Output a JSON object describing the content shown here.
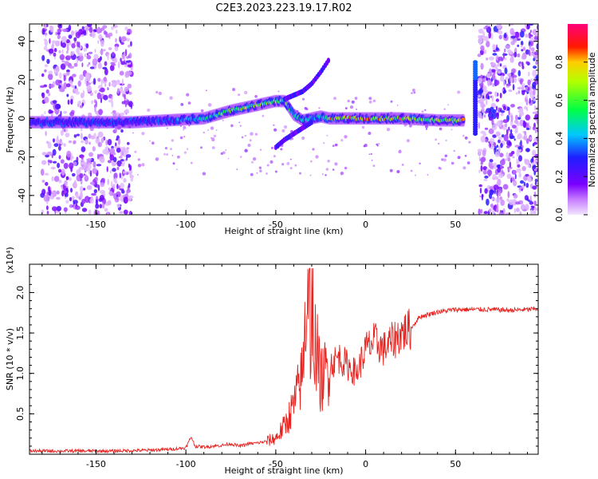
{
  "title": "C2E3.2023.223.19.17.R02",
  "colors": {
    "snr_line": "#e8221e",
    "spectrum_low": "#8a00e0",
    "spectrum_high": "#ff0000"
  },
  "chart_data": [
    {
      "type": "heatmap",
      "xlabel": "Height of straight line (km)",
      "ylabel": "Frequency (Hz)",
      "xlim": [
        -187,
        96
      ],
      "ylim": [
        -50,
        49
      ],
      "xticks": [
        -150,
        -100,
        -50,
        0,
        50
      ],
      "xtick_labels": [
        "-150",
        "-100",
        "-50",
        "0",
        "50"
      ],
      "yticks": [
        -40,
        -20,
        0,
        20,
        40
      ],
      "ytick_labels": [
        "-40",
        "-20",
        "0",
        "20",
        "40"
      ],
      "colorbar": {
        "label": "Normalized spectral amplitude",
        "range": [
          0,
          1
        ],
        "ticks": [
          "0.0",
          "0.2",
          "0.4",
          "0.6",
          "0.8"
        ],
        "colormap": "rainbow (violet → blue → cyan → green → yellow → red → magenta)"
      },
      "ridge": {
        "x": [
          -187,
          -170,
          -150,
          -130,
          -110,
          -90,
          -75,
          -60,
          -50,
          -45,
          -40,
          -35,
          -30,
          -25,
          -20,
          -10,
          0,
          20,
          40,
          55
        ],
        "freq": [
          -2,
          -2,
          -2,
          -2,
          -1,
          0,
          4,
          7,
          9,
          9,
          2,
          -1,
          0,
          1,
          0,
          0,
          0,
          0,
          -1,
          -1
        ],
        "amplitude": [
          0.3,
          0.3,
          0.3,
          0.3,
          0.4,
          0.5,
          0.7,
          0.8,
          0.8,
          0.7,
          0.6,
          0.5,
          0.6,
          0.6,
          0.9,
          0.9,
          0.9,
          0.85,
          0.75,
          0.8
        ]
      },
      "upper_branch": {
        "x": [
          -45,
          -35,
          -30,
          -25,
          -20
        ],
        "freq": [
          10,
          14,
          18,
          24,
          31
        ]
      },
      "lower_branch": {
        "x": [
          -50,
          -45,
          -40,
          -35,
          -30
        ],
        "freq": [
          -15,
          -11,
          -8,
          -5,
          -2
        ]
      },
      "spike": {
        "x": 61,
        "freq_range": [
          -8,
          30
        ]
      },
      "noise_regions": [
        [
          -180,
          -130
        ],
        [
          63,
          96
        ]
      ]
    },
    {
      "type": "line",
      "xlabel": "Height of straight line (km)",
      "ylabel": "SNR (10 * v/v)",
      "scale_note": "(x10⁴)",
      "xlim": [
        -187,
        96
      ],
      "ylim": [
        0,
        2.35
      ],
      "xticks": [
        -150,
        -100,
        -50,
        0,
        50
      ],
      "xtick_labels": [
        "-150",
        "-100",
        "-50",
        "0",
        "50"
      ],
      "yticks": [
        0.5,
        1.0,
        1.5,
        2.0
      ],
      "ytick_labels": [
        "0.5",
        "1.0",
        "1.5",
        "2.0"
      ],
      "series": [
        {
          "x": [
            -187,
            -160,
            -140,
            -120,
            -110,
            -100,
            -97,
            -95,
            -90,
            -80,
            -75,
            -70,
            -65,
            -60,
            -55,
            -50,
            -45,
            -40,
            -35,
            -32,
            -30,
            -28,
            -25,
            -20,
            -15,
            -10,
            -5,
            0,
            5,
            10,
            15,
            20,
            25,
            30,
            40,
            50,
            60,
            70,
            80,
            90,
            96
          ],
          "y": [
            0.04,
            0.04,
            0.04,
            0.05,
            0.06,
            0.08,
            0.22,
            0.1,
            0.09,
            0.11,
            0.13,
            0.1,
            0.13,
            0.14,
            0.16,
            0.2,
            0.35,
            0.6,
            1.0,
            2.3,
            1.0,
            1.4,
            0.9,
            1.1,
            1.2,
            1.1,
            1.0,
            1.3,
            1.4,
            1.3,
            1.4,
            1.5,
            1.55,
            1.7,
            1.76,
            1.79,
            1.79,
            1.79,
            1.78,
            1.79,
            1.8
          ]
        }
      ]
    }
  ]
}
